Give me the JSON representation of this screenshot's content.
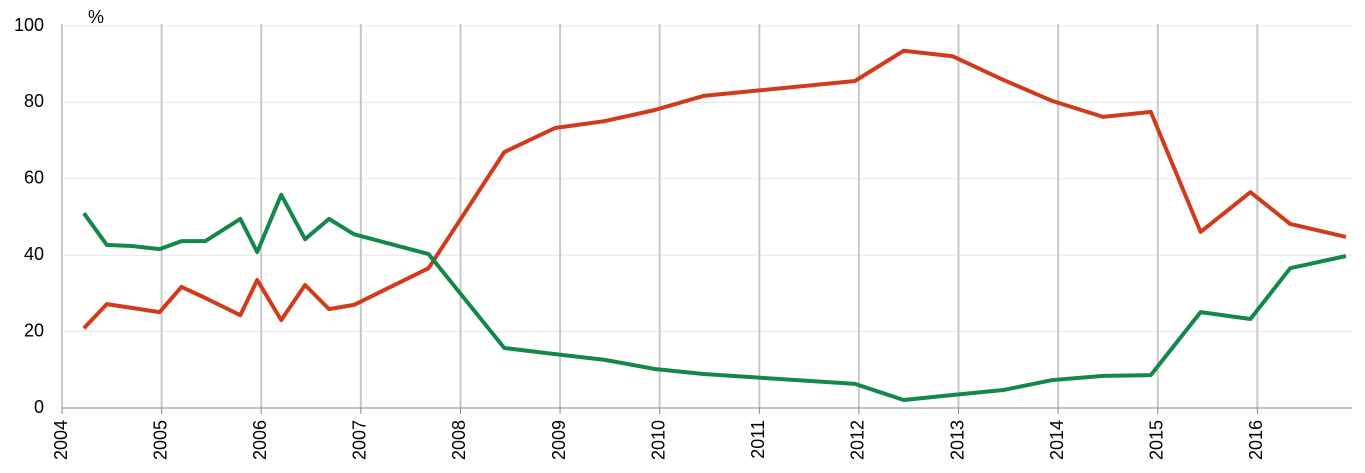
{
  "chart_data": {
    "type": "line",
    "y_unit": "%",
    "x": [
      2004.22,
      2004.45,
      2004.7,
      2004.98,
      2005.2,
      2005.44,
      2005.79,
      2005.96,
      2006.2,
      2006.44,
      2006.68,
      2006.93,
      2007.68,
      2008.44,
      2008.95,
      2009.45,
      2009.95,
      2010.44,
      2011.96,
      2012.45,
      2012.94,
      2013.45,
      2013.94,
      2014.45,
      2014.93,
      2015.43,
      2015.93,
      2016.33,
      2016.89
    ],
    "series": [
      {
        "color": "#d23a1c",
        "values": [
          20.9,
          27.2,
          26.2,
          25.1,
          31.7,
          28.8,
          24.3,
          33.5,
          23.0,
          32.2,
          25.9,
          27.0,
          36.6,
          67.0,
          73.3,
          75.1,
          78.0,
          81.7,
          85.6,
          93.5,
          92.1,
          85.9,
          80.4,
          76.2,
          77.5,
          46.1,
          56.5,
          48.2,
          44.8
        ]
      },
      {
        "color": "#13884a",
        "values": [
          51.0,
          42.7,
          42.4,
          41.6,
          43.7,
          43.7,
          49.5,
          40.8,
          55.8,
          44.2,
          49.5,
          45.5,
          40.3,
          15.7,
          14.1,
          12.6,
          10.2,
          8.9,
          6.3,
          2.1,
          3.4,
          4.7,
          7.3,
          8.4,
          8.6,
          25.1,
          23.3,
          36.6,
          39.8
        ]
      }
    ],
    "xlim": [
      2004,
      2016.95
    ],
    "xticks": [
      2004,
      2005,
      2006,
      2007,
      2008,
      2009,
      2010,
      2011,
      2012,
      2013,
      2014,
      2015,
      2016
    ],
    "ylim": [
      0,
      100
    ],
    "yticks": [
      0,
      20,
      40,
      60,
      80,
      100
    ],
    "grid": true
  }
}
